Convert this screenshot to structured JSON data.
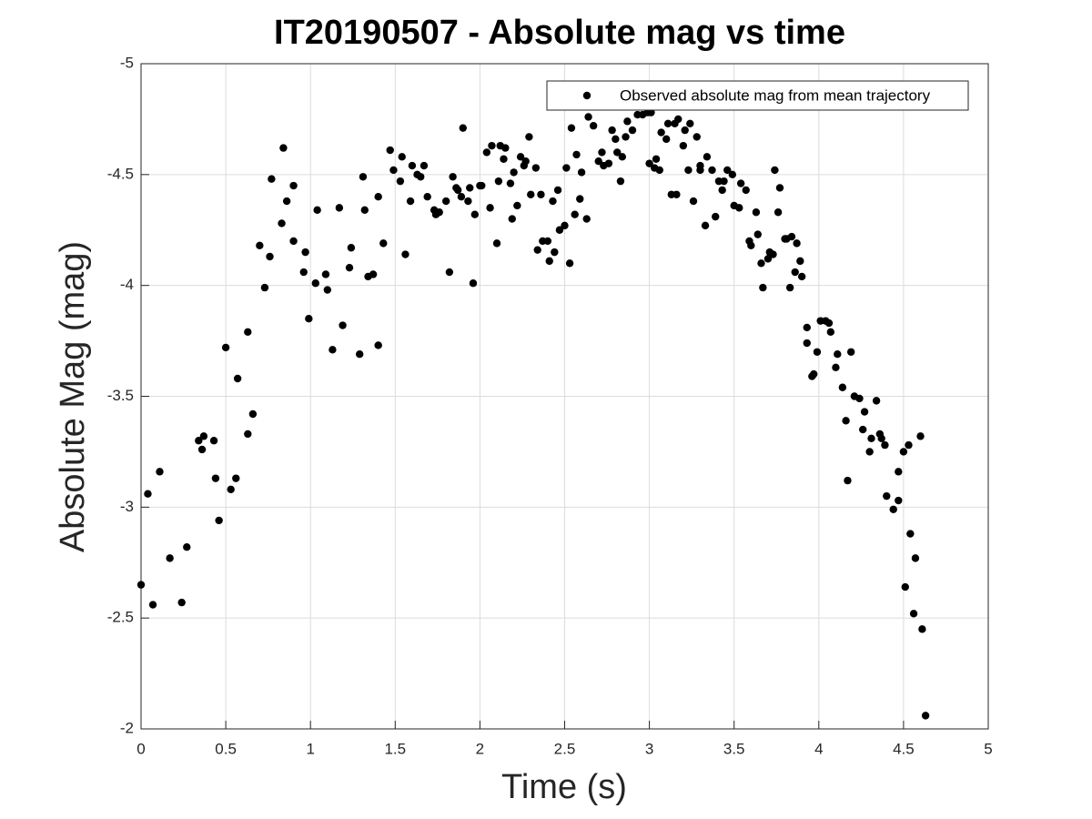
{
  "chart_data": {
    "type": "scatter",
    "title": "IT20190507 - Absolute mag vs time",
    "x_label": "Time (s)",
    "y_label": "Absolute Mag (mag)",
    "xlim": [
      0,
      5
    ],
    "xticks": [
      0,
      0.5,
      1,
      1.5,
      2,
      2.5,
      3,
      3.5,
      4,
      4.5,
      5
    ],
    "ylim": [
      -5,
      -2
    ],
    "yticks": [
      -5,
      -4.5,
      -4,
      -3.5,
      -3,
      -2.5,
      -2
    ],
    "y_reverse": true,
    "grid": true,
    "legend": "upper right",
    "x": [
      0,
      0.04,
      0.07,
      0.11,
      0.17,
      0.24,
      0.27,
      0.34,
      0.36,
      0.37,
      0.43,
      0.44,
      0.46,
      0.5,
      0.53,
      0.56,
      0.57,
      0.63,
      0.63,
      0.66,
      0.7,
      0.73,
      0.76,
      0.77,
      0.83,
      0.84,
      0.86,
      0.9,
      0.9,
      0.96,
      0.97,
      0.99,
      1.03,
      1.04,
      1.09,
      1.1,
      1.13,
      1.17,
      1.19,
      1.23,
      1.24,
      1.29,
      1.31,
      1.32,
      1.34,
      1.37,
      1.4,
      1.4,
      1.43,
      1.47,
      1.49,
      1.53,
      1.54,
      1.56,
      1.59,
      1.6,
      1.63,
      1.65,
      1.67,
      1.69,
      1.73,
      1.74,
      1.76,
      1.8,
      1.82,
      1.84,
      1.86,
      1.87,
      1.89,
      1.9,
      1.93,
      1.94,
      1.96,
      1.97,
      2.0,
      2.01,
      2.04,
      2.06,
      2.07,
      2.1,
      2.11,
      2.12,
      2.14,
      2.15,
      2.18,
      2.19,
      2.2,
      2.22,
      2.24,
      2.26,
      2.29,
      2.27,
      2.3,
      2.33,
      2.34,
      2.36,
      2.37,
      2.4,
      2.41,
      2.43,
      2.44,
      2.46,
      2.47,
      2.5,
      2.51,
      2.53,
      2.54,
      2.56,
      2.57,
      2.59,
      2.6,
      2.63,
      2.64,
      2.67,
      2.7,
      2.72,
      2.73,
      2.76,
      2.78,
      2.8,
      2.81,
      2.83,
      2.84,
      2.86,
      2.87,
      2.9,
      2.93,
      2.96,
      2.99,
      3.0,
      3.01,
      3.03,
      3.04,
      3.06,
      3.07,
      3.1,
      3.11,
      3.13,
      3.15,
      3.16,
      3.17,
      3.2,
      3.21,
      3.23,
      3.24,
      3.26,
      3.28,
      3.3,
      3.3,
      3.33,
      3.34,
      3.37,
      3.39,
      3.41,
      3.43,
      3.44,
      3.46,
      3.49,
      3.5,
      3.53,
      3.54,
      3.57,
      3.59,
      3.6,
      3.63,
      3.64,
      3.66,
      3.67,
      3.7,
      3.71,
      3.74,
      3.73,
      3.76,
      3.77,
      3.8,
      3.81,
      3.83,
      3.84,
      3.86,
      3.87,
      3.89,
      3.9,
      3.93,
      3.93,
      3.96,
      3.97,
      3.99,
      4.01,
      4.04,
      4.06,
      4.07,
      4.1,
      4.11,
      4.14,
      4.16,
      4.17,
      4.19,
      4.21,
      4.24,
      4.26,
      4.27,
      4.3,
      4.31,
      4.34,
      4.36,
      4.37,
      4.39,
      4.4,
      4.44,
      4.47,
      4.47,
      4.5,
      4.51,
      4.53,
      4.54,
      4.56,
      4.57,
      4.6,
      4.61,
      4.63
    ],
    "series": [
      {
        "name": "Observed absolute mag from mean trajectory",
        "color": "#000000",
        "values": [
          -2.65,
          -3.06,
          -2.56,
          -3.16,
          -2.77,
          -2.57,
          -2.82,
          -3.3,
          -3.26,
          -3.32,
          -3.3,
          -3.13,
          -2.94,
          -3.72,
          -3.08,
          -3.13,
          -3.58,
          -3.33,
          -3.79,
          -3.42,
          -4.18,
          -3.99,
          -4.13,
          -4.48,
          -4.28,
          -4.62,
          -4.38,
          -4.2,
          -4.45,
          -4.06,
          -4.15,
          -3.85,
          -4.01,
          -4.34,
          -4.05,
          -3.98,
          -3.71,
          -4.35,
          -3.82,
          -4.08,
          -4.17,
          -3.69,
          -4.49,
          -4.34,
          -4.04,
          -4.05,
          -3.73,
          -4.4,
          -4.19,
          -4.61,
          -4.52,
          -4.47,
          -4.58,
          -4.14,
          -4.38,
          -4.54,
          -4.5,
          -4.49,
          -4.54,
          -4.4,
          -4.34,
          -4.32,
          -4.33,
          -4.38,
          -4.06,
          -4.49,
          -4.44,
          -4.43,
          -4.4,
          -4.71,
          -4.38,
          -4.44,
          -4.01,
          -4.32,
          -4.45,
          -4.45,
          -4.6,
          -4.35,
          -4.63,
          -4.19,
          -4.47,
          -4.63,
          -4.57,
          -4.62,
          -4.46,
          -4.3,
          -4.51,
          -4.36,
          -4.58,
          -4.54,
          -4.67,
          -4.56,
          -4.41,
          -4.53,
          -4.16,
          -4.41,
          -4.2,
          -4.2,
          -4.11,
          -4.38,
          -4.15,
          -4.43,
          -4.25,
          -4.27,
          -4.53,
          -4.1,
          -4.71,
          -4.32,
          -4.59,
          -4.39,
          -4.51,
          -4.3,
          -4.76,
          -4.72,
          -4.56,
          -4.6,
          -4.54,
          -4.55,
          -4.7,
          -4.66,
          -4.6,
          -4.47,
          -4.58,
          -4.67,
          -4.74,
          -4.7,
          -4.77,
          -4.77,
          -4.78,
          -4.55,
          -4.78,
          -4.53,
          -4.57,
          -4.52,
          -4.69,
          -4.66,
          -4.73,
          -4.41,
          -4.73,
          -4.41,
          -4.75,
          -4.63,
          -4.7,
          -4.52,
          -4.73,
          -4.38,
          -4.67,
          -4.52,
          -4.54,
          -4.27,
          -4.58,
          -4.52,
          -4.31,
          -4.47,
          -4.43,
          -4.47,
          -4.52,
          -4.5,
          -4.36,
          -4.35,
          -4.46,
          -4.43,
          -4.2,
          -4.18,
          -4.33,
          -4.23,
          -4.1,
          -3.99,
          -4.12,
          -4.15,
          -4.52,
          -4.14,
          -4.33,
          -4.44,
          -4.21,
          -4.21,
          -3.99,
          -4.22,
          -4.06,
          -4.19,
          -4.11,
          -4.04,
          -3.81,
          -3.74,
          -3.59,
          -3.6,
          -3.7,
          -3.84,
          -3.84,
          -3.83,
          -3.79,
          -3.63,
          -3.69,
          -3.54,
          -3.39,
          -3.12,
          -3.7,
          -3.5,
          -3.49,
          -3.35,
          -3.43,
          -3.25,
          -3.31,
          -3.48,
          -3.33,
          -3.31,
          -3.28,
          -3.05,
          -2.99,
          -3.16,
          -3.03,
          -3.25,
          -2.64,
          -3.28,
          -2.88,
          -2.52,
          -2.77,
          -3.32,
          -2.45,
          -2.06
        ]
      }
    ]
  }
}
